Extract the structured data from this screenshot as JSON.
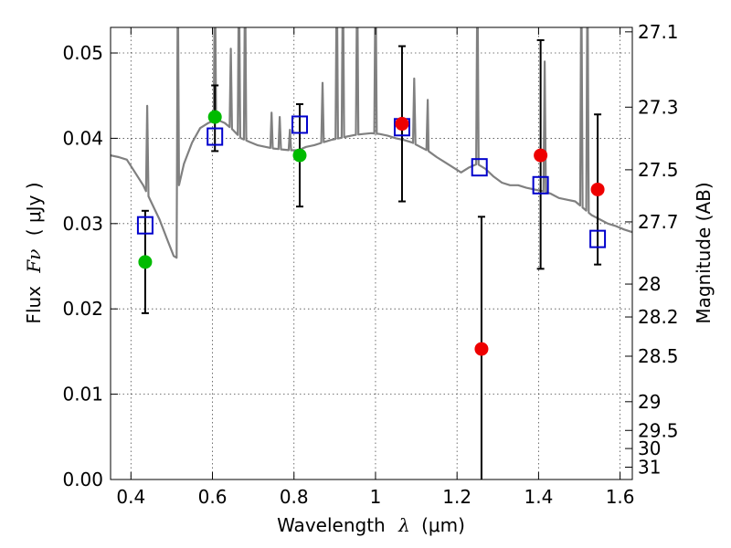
{
  "chart_data": {
    "type": "scatter",
    "xlabel_prefix": "Wavelength",
    "xlabel_var": "λ",
    "xlabel_unit": "(μm)",
    "ylabel_prefix": "Flux",
    "ylabel_var": "Fν",
    "ylabel_unit": "( μJy )",
    "y2label": "Magnitude (AB)",
    "xlim": [
      0.35,
      1.63
    ],
    "ylim": [
      0.0,
      0.053
    ],
    "grid": true,
    "xticks": [
      0.4,
      0.6,
      0.8,
      1.0,
      1.2,
      1.4,
      1.6
    ],
    "xtick_labels": [
      "0.4",
      "0.6",
      "0.8",
      "1",
      "1.2",
      "1.4",
      "1.6"
    ],
    "yticks": [
      0.0,
      0.01,
      0.02,
      0.03,
      0.04,
      0.05
    ],
    "ytick_labels": [
      "0.00",
      "0.01",
      "0.02",
      "0.03",
      "0.04",
      "0.05"
    ],
    "y2ticks": [
      {
        "mag": 27.1,
        "label": "27.1"
      },
      {
        "mag": 27.3,
        "label": "27.3"
      },
      {
        "mag": 27.5,
        "label": "27.5"
      },
      {
        "mag": 27.7,
        "label": "27.7"
      },
      {
        "mag": 28.0,
        "label": "28"
      },
      {
        "mag": 28.2,
        "label": "28.2"
      },
      {
        "mag": 28.5,
        "label": "28.5"
      },
      {
        "mag": 29.0,
        "label": "29"
      },
      {
        "mag": 29.5,
        "label": "29.5"
      },
      {
        "mag": 30.0,
        "label": "30"
      },
      {
        "mag": 31.0,
        "label": "31"
      }
    ],
    "colors": {
      "sed": "#808080",
      "observed_optical": "#00bb00",
      "observed_nir": "#ee0000",
      "model": "#0000cc",
      "errorbar": "#000000"
    },
    "observed_optical": [
      {
        "x": 0.435,
        "y": 0.0255,
        "err_low": 0.0195,
        "err_high": 0.0315
      },
      {
        "x": 0.606,
        "y": 0.0425,
        "err_low": 0.0385,
        "err_high": 0.0462
      },
      {
        "x": 0.814,
        "y": 0.038,
        "err_low": 0.032,
        "err_high": 0.044
      }
    ],
    "observed_nir": [
      {
        "x": 1.065,
        "y": 0.0417,
        "err_low": 0.0326,
        "err_high": 0.0508
      },
      {
        "x": 1.26,
        "y": 0.0153,
        "err_low": 0.0,
        "err_high": 0.0308
      },
      {
        "x": 1.405,
        "y": 0.038,
        "err_low": 0.0247,
        "err_high": 0.0515
      },
      {
        "x": 1.545,
        "y": 0.034,
        "err_low": 0.0252,
        "err_high": 0.0428
      }
    ],
    "model_points": [
      {
        "x": 0.435,
        "y": 0.0298
      },
      {
        "x": 0.606,
        "y": 0.0402
      },
      {
        "x": 0.814,
        "y": 0.0416
      },
      {
        "x": 1.065,
        "y": 0.0413
      },
      {
        "x": 1.255,
        "y": 0.0366
      },
      {
        "x": 1.405,
        "y": 0.0345
      },
      {
        "x": 1.545,
        "y": 0.0282
      }
    ],
    "sed_continuum": [
      [
        0.35,
        0.038
      ],
      [
        0.37,
        0.0378
      ],
      [
        0.39,
        0.0375
      ],
      [
        0.41,
        0.036
      ],
      [
        0.43,
        0.0345
      ],
      [
        0.45,
        0.0325
      ],
      [
        0.47,
        0.0305
      ],
      [
        0.49,
        0.028
      ],
      [
        0.505,
        0.0262
      ],
      [
        0.512,
        0.026
      ],
      [
        0.518,
        0.0345
      ],
      [
        0.53,
        0.037
      ],
      [
        0.55,
        0.0395
      ],
      [
        0.57,
        0.0412
      ],
      [
        0.59,
        0.0418
      ],
      [
        0.61,
        0.0422
      ],
      [
        0.63,
        0.0418
      ],
      [
        0.65,
        0.041
      ],
      [
        0.67,
        0.04
      ],
      [
        0.69,
        0.0396
      ],
      [
        0.71,
        0.0392
      ],
      [
        0.73,
        0.039
      ],
      [
        0.75,
        0.0388
      ],
      [
        0.77,
        0.0387
      ],
      [
        0.79,
        0.0386
      ],
      [
        0.81,
        0.0386
      ],
      [
        0.83,
        0.039
      ],
      [
        0.85,
        0.0392
      ],
      [
        0.87,
        0.0395
      ],
      [
        0.89,
        0.0398
      ],
      [
        0.91,
        0.04
      ],
      [
        0.93,
        0.0402
      ],
      [
        0.95,
        0.0404
      ],
      [
        0.97,
        0.0405
      ],
      [
        0.99,
        0.0406
      ],
      [
        1.01,
        0.0405
      ],
      [
        1.03,
        0.0403
      ],
      [
        1.05,
        0.04
      ],
      [
        1.07,
        0.0398
      ],
      [
        1.09,
        0.0395
      ],
      [
        1.11,
        0.039
      ],
      [
        1.13,
        0.0385
      ],
      [
        1.15,
        0.0378
      ],
      [
        1.17,
        0.0372
      ],
      [
        1.19,
        0.0366
      ],
      [
        1.21,
        0.036
      ],
      [
        1.23,
        0.0366
      ],
      [
        1.25,
        0.037
      ],
      [
        1.27,
        0.0364
      ],
      [
        1.29,
        0.0355
      ],
      [
        1.31,
        0.0348
      ],
      [
        1.33,
        0.0345
      ],
      [
        1.35,
        0.0345
      ],
      [
        1.37,
        0.0342
      ],
      [
        1.39,
        0.034
      ],
      [
        1.41,
        0.0338
      ],
      [
        1.43,
        0.0335
      ],
      [
        1.45,
        0.033
      ],
      [
        1.47,
        0.0328
      ],
      [
        1.49,
        0.0326
      ],
      [
        1.51,
        0.0318
      ],
      [
        1.53,
        0.031
      ],
      [
        1.55,
        0.0305
      ],
      [
        1.57,
        0.03
      ],
      [
        1.59,
        0.0297
      ],
      [
        1.61,
        0.0293
      ],
      [
        1.63,
        0.029
      ]
    ],
    "sed_emission_lines": [
      {
        "x": 0.44,
        "peak": 0.0438
      },
      {
        "x": 0.515,
        "peak": 0.06
      },
      {
        "x": 0.606,
        "peak": 0.06
      },
      {
        "x": 0.645,
        "peak": 0.0505
      },
      {
        "x": 0.665,
        "peak": 0.06
      },
      {
        "x": 0.68,
        "peak": 0.06
      },
      {
        "x": 0.745,
        "peak": 0.043
      },
      {
        "x": 0.765,
        "peak": 0.0425
      },
      {
        "x": 0.79,
        "peak": 0.041
      },
      {
        "x": 0.87,
        "peak": 0.0465
      },
      {
        "x": 0.905,
        "peak": 0.06
      },
      {
        "x": 0.92,
        "peak": 0.06
      },
      {
        "x": 0.955,
        "peak": 0.06
      },
      {
        "x": 1.0,
        "peak": 0.06
      },
      {
        "x": 1.095,
        "peak": 0.047
      },
      {
        "x": 1.128,
        "peak": 0.0445
      },
      {
        "x": 1.25,
        "peak": 0.06
      },
      {
        "x": 1.415,
        "peak": 0.049
      },
      {
        "x": 1.505,
        "peak": 0.06
      },
      {
        "x": 1.52,
        "peak": 0.06
      }
    ]
  }
}
